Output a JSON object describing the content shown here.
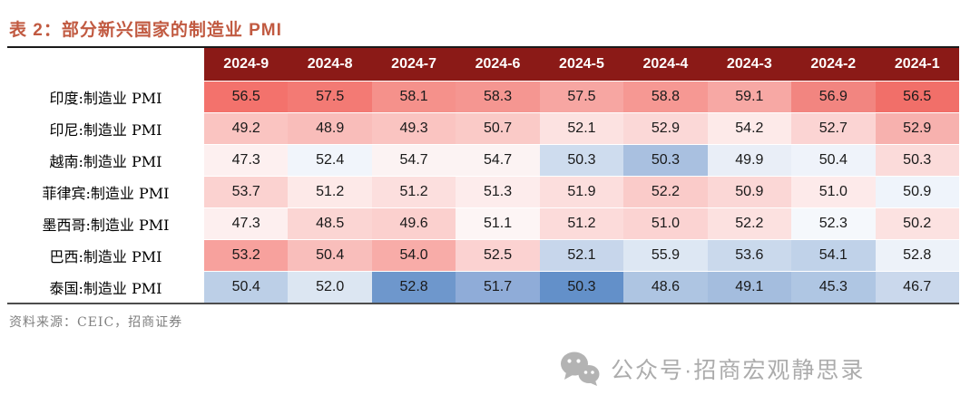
{
  "title": "表 2：部分新兴国家的制造业 PMI",
  "colors": {
    "title_text": "#C15A41",
    "header_bg": "#8B1A17",
    "header_text": "#FFFFFF",
    "table_top_border": "#1A1A1A",
    "table_bottom_border": "#4D4D4D",
    "source_text": "#7F7F7F",
    "footer_text": "#ACACAC",
    "footer_icon": "#B3B3B3"
  },
  "chart_data": {
    "type": "table",
    "title": "表 2：部分新兴国家的制造业 PMI",
    "columns": [
      "2024-9",
      "2024-8",
      "2024-7",
      "2024-6",
      "2024-5",
      "2024-4",
      "2024-3",
      "2024-2",
      "2024-1"
    ],
    "rows": [
      {
        "label": "印度:制造业 PMI",
        "values": [
          "56.5",
          "57.5",
          "58.1",
          "58.3",
          "57.5",
          "58.8",
          "59.1",
          "56.9",
          "56.5"
        ],
        "cell_colors": [
          "#F3726C",
          "#F37A74",
          "#F5918B",
          "#F59691",
          "#F7A6A2",
          "#F69893",
          "#F7A8A4",
          "#F28580",
          "#F16F69"
        ]
      },
      {
        "label": "印尼:制造业 PMI",
        "values": [
          "49.2",
          "48.9",
          "49.3",
          "50.7",
          "52.1",
          "52.9",
          "54.2",
          "52.7",
          "52.9"
        ],
        "cell_colors": [
          "#FAC4C1",
          "#F9BDBA",
          "#FAC4C1",
          "#FACAC7",
          "#FCE2E1",
          "#FBD8D7",
          "#FDEAE9",
          "#FBD4D3",
          "#F7B1AE"
        ]
      },
      {
        "label": "越南:制造业 PMI",
        "values": [
          "47.3",
          "52.4",
          "54.7",
          "54.7",
          "50.3",
          "50.3",
          "49.9",
          "50.4",
          "50.3"
        ],
        "cell_colors": [
          "#FDF0F0",
          "#F1F5FB",
          "#FCF3F3",
          "#FCF3F3",
          "#CEDCEE",
          "#A9C0E0",
          "#E9EEF7",
          "#EFF3FA",
          "#FBDBDA"
        ]
      },
      {
        "label": "菲律宾:制造业 PMI",
        "values": [
          "53.7",
          "51.2",
          "51.2",
          "51.3",
          "51.9",
          "52.2",
          "50.9",
          "51.0",
          "50.9"
        ],
        "cell_colors": [
          "#FBD2D0",
          "#FDE9E8",
          "#FCDFDE",
          "#FDECEC",
          "#FCDEDD",
          "#FACBC9",
          "#FBD7D6",
          "#FDEAEA",
          "#EFF4FB"
        ]
      },
      {
        "label": "墨西哥:制造业 PMI",
        "values": [
          "47.3",
          "48.5",
          "49.6",
          "51.1",
          "51.2",
          "51.0",
          "52.2",
          "52.3",
          "50.2"
        ],
        "cell_colors": [
          "#FDEFEF",
          "#FBD5D3",
          "#FBD0CE",
          "#FDF5F5",
          "#FCDBDA",
          "#FBD3D2",
          "#FCE1E0",
          "#F5F8FC",
          "#FCE2E1"
        ]
      },
      {
        "label": "巴西:制造业 PMI",
        "values": [
          "53.2",
          "50.4",
          "54.0",
          "52.5",
          "52.1",
          "55.9",
          "53.6",
          "54.1",
          "52.8"
        ],
        "cell_colors": [
          "#F7A19D",
          "#F9BEBB",
          "#F8ACA8",
          "#FBD2D1",
          "#C7D6EB",
          "#DDE7F3",
          "#CAD9EC",
          "#C0D2E9",
          "#EDF2F9"
        ]
      },
      {
        "label": "泰国:制造业 PMI",
        "values": [
          "50.4",
          "52.0",
          "52.8",
          "51.7",
          "50.3",
          "48.6",
          "49.1",
          "45.3",
          "46.7"
        ],
        "cell_colors": [
          "#BCCFE7",
          "#DCE6F2",
          "#6E97CC",
          "#8FACD8",
          "#6390C9",
          "#AEC5E2",
          "#A4BDDE",
          "#AFC6E3",
          "#CAD8EC"
        ]
      }
    ]
  },
  "source": "资料来源：CEIC，招商证券",
  "footer": {
    "icon": "wechat-icon",
    "text": "公众号·招商宏观静思录"
  }
}
